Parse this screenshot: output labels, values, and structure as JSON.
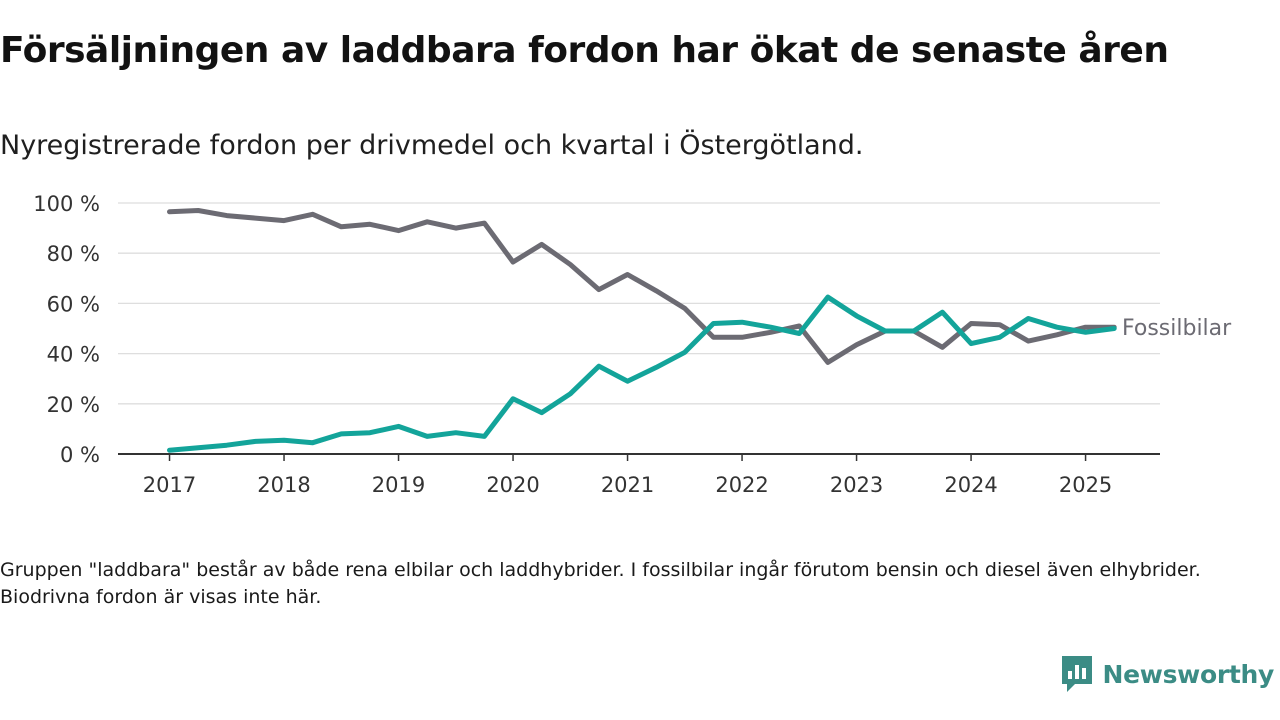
{
  "header": {
    "title": "Försäljningen av laddbara fordon har ökat de senaste åren",
    "subtitle": "Nyregistrerade fordon per drivmedel och kvartal i Östergötland."
  },
  "footnote": "Gruppen \"laddbara\" består av både rena elbilar och laddhybrider. I fossilbilar ingår förutom bensin och diesel även elhybrider. Biodrivna fordon är visas inte här.",
  "brand": {
    "name": "Newsworthy",
    "icon": "newsworthy-logo-icon",
    "color": "#3b8c85"
  },
  "colors": {
    "laddbara": "#13a49a",
    "fossil": "#6c6b73",
    "grid": "#dedede",
    "axis": "#333333"
  },
  "chart_data": {
    "type": "line",
    "x": [
      2017.0,
      2017.25,
      2017.5,
      2017.75,
      2018.0,
      2018.25,
      2018.5,
      2018.75,
      2019.0,
      2019.25,
      2019.5,
      2019.75,
      2020.0,
      2020.25,
      2020.5,
      2020.75,
      2021.0,
      2021.25,
      2021.5,
      2021.75,
      2022.0,
      2022.25,
      2022.5,
      2022.75,
      2023.0,
      2023.25,
      2023.5,
      2023.75,
      2024.0,
      2024.25,
      2024.5,
      2024.75,
      2025.0,
      2025.25
    ],
    "xticks": [
      2017,
      2018,
      2019,
      2020,
      2021,
      2022,
      2023,
      2024,
      2025
    ],
    "xtick_labels": [
      "2017",
      "2018",
      "2019",
      "2020",
      "2021",
      "2022",
      "2023",
      "2024",
      "2025"
    ],
    "yticks": [
      0,
      20,
      40,
      60,
      80,
      100
    ],
    "ytick_labels": [
      "0 %",
      "20 %",
      "40 %",
      "60 %",
      "80 %",
      "100 %"
    ],
    "ylim": [
      0,
      100
    ],
    "xlim": [
      2016.55,
      2025.65
    ],
    "grid": true,
    "series": [
      {
        "name": "Fossilbilar",
        "key": "fossil",
        "values": [
          96.5,
          97,
          95,
          94,
          93,
          95.5,
          90.5,
          91.5,
          89,
          92.5,
          90,
          92,
          76.5,
          83.5,
          75.5,
          65.5,
          71.5,
          65,
          58,
          46.5,
          46.5,
          48.5,
          51,
          36.5,
          43.5,
          49,
          49,
          42.5,
          52,
          51.5,
          45,
          47.5,
          50.5,
          50.5
        ]
      },
      {
        "name": "",
        "key": "laddbara",
        "values": [
          1.5,
          2.5,
          3.5,
          5,
          5.5,
          4.5,
          8,
          8.5,
          11,
          7,
          8.5,
          7,
          22,
          16.5,
          24,
          35,
          29,
          34.5,
          40.5,
          52,
          52.5,
          50.5,
          48,
          62.5,
          55,
          49,
          49,
          56.5,
          44,
          46.5,
          54,
          50.5,
          48.5,
          50
        ]
      }
    ]
  }
}
